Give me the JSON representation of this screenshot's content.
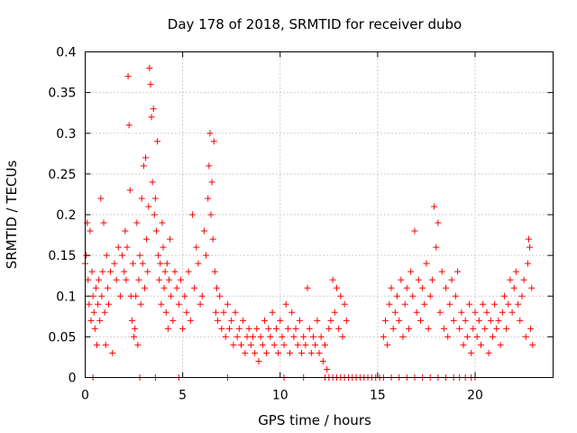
{
  "chart_data": {
    "type": "scatter",
    "title": "Day 178 of 2018, SRMTID for receiver dubo",
    "xlabel": "GPS time / hours",
    "ylabel": "SRMTID / TECUs",
    "xlim": [
      0,
      24
    ],
    "ylim": [
      0,
      0.4
    ],
    "xticks": [
      0,
      5,
      10,
      15,
      20
    ],
    "yticks": [
      0,
      0.05,
      0.1,
      0.15,
      0.2,
      0.25,
      0.3,
      0.35,
      0.4
    ],
    "grid": true,
    "marker": "+",
    "color": "#ff0000",
    "series": [
      {
        "name": "SRMTID",
        "points": [
          [
            0.0,
            0.14
          ],
          [
            0.05,
            0.15
          ],
          [
            0.1,
            0.19
          ],
          [
            0.15,
            0.12
          ],
          [
            0.2,
            0.09
          ],
          [
            0.25,
            0.18
          ],
          [
            0.3,
            0.07
          ],
          [
            0.35,
            0.13
          ],
          [
            0.4,
            0.1
          ],
          [
            0.45,
            0.08
          ],
          [
            0.5,
            0.06
          ],
          [
            0.55,
            0.11
          ],
          [
            0.6,
            0.04
          ],
          [
            0.65,
            0.09
          ],
          [
            0.7,
            0.12
          ],
          [
            0.75,
            0.07
          ],
          [
            0.8,
            0.22
          ],
          [
            0.85,
            0.1
          ],
          [
            0.9,
            0.13
          ],
          [
            0.95,
            0.19
          ],
          [
            1.0,
            0.08
          ],
          [
            1.05,
            0.04
          ],
          [
            1.1,
            0.15
          ],
          [
            1.15,
            0.11
          ],
          [
            1.2,
            0.09
          ],
          [
            1.3,
            0.13
          ],
          [
            1.4,
            0.03
          ],
          [
            1.5,
            0.14
          ],
          [
            1.6,
            0.12
          ],
          [
            1.7,
            0.16
          ],
          [
            1.8,
            0.1
          ],
          [
            1.9,
            0.15
          ],
          [
            2.0,
            0.13
          ],
          [
            2.05,
            0.18
          ],
          [
            2.1,
            0.12
          ],
          [
            2.15,
            0.16
          ],
          [
            2.2,
            0.37
          ],
          [
            2.25,
            0.31
          ],
          [
            2.3,
            0.23
          ],
          [
            2.35,
            0.1
          ],
          [
            2.4,
            0.07
          ],
          [
            2.45,
            0.14
          ],
          [
            2.5,
            0.05
          ],
          [
            2.55,
            0.06
          ],
          [
            2.6,
            0.1
          ],
          [
            2.65,
            0.19
          ],
          [
            2.7,
            0.04
          ],
          [
            2.75,
            0.12
          ],
          [
            2.8,
            0.15
          ],
          [
            2.85,
            0.09
          ],
          [
            2.9,
            0.22
          ],
          [
            2.95,
            0.14
          ],
          [
            3.0,
            0.26
          ],
          [
            3.05,
            0.11
          ],
          [
            3.1,
            0.27
          ],
          [
            3.15,
            0.17
          ],
          [
            3.2,
            0.13
          ],
          [
            3.25,
            0.21
          ],
          [
            3.3,
            0.38
          ],
          [
            3.35,
            0.36
          ],
          [
            3.4,
            0.32
          ],
          [
            3.45,
            0.24
          ],
          [
            3.5,
            0.33
          ],
          [
            3.55,
            0.2
          ],
          [
            3.6,
            0.22
          ],
          [
            3.65,
            0.18
          ],
          [
            3.7,
            0.29
          ],
          [
            3.75,
            0.15
          ],
          [
            3.8,
            0.12
          ],
          [
            3.85,
            0.14
          ],
          [
            3.9,
            0.09
          ],
          [
            3.95,
            0.19
          ],
          [
            4.0,
            0.16
          ],
          [
            4.05,
            0.11
          ],
          [
            4.1,
            0.13
          ],
          [
            4.15,
            0.08
          ],
          [
            4.2,
            0.14
          ],
          [
            4.25,
            0.06
          ],
          [
            4.3,
            0.12
          ],
          [
            4.35,
            0.17
          ],
          [
            4.4,
            0.1
          ],
          [
            4.5,
            0.07
          ],
          [
            4.6,
            0.13
          ],
          [
            4.7,
            0.11
          ],
          [
            4.8,
            0.09
          ],
          [
            4.9,
            0.12
          ],
          [
            5.0,
            0.06
          ],
          [
            5.1,
            0.1
          ],
          [
            5.2,
            0.08
          ],
          [
            5.3,
            0.13
          ],
          [
            5.4,
            0.07
          ],
          [
            5.5,
            0.2
          ],
          [
            5.6,
            0.11
          ],
          [
            5.7,
            0.16
          ],
          [
            5.8,
            0.14
          ],
          [
            5.9,
            0.09
          ],
          [
            6.0,
            0.1
          ],
          [
            6.1,
            0.18
          ],
          [
            6.2,
            0.15
          ],
          [
            6.3,
            0.22
          ],
          [
            6.35,
            0.26
          ],
          [
            6.4,
            0.3
          ],
          [
            6.45,
            0.2
          ],
          [
            6.5,
            0.24
          ],
          [
            6.55,
            0.17
          ],
          [
            6.6,
            0.29
          ],
          [
            6.65,
            0.13
          ],
          [
            6.7,
            0.08
          ],
          [
            6.75,
            0.11
          ],
          [
            6.8,
            0.07
          ],
          [
            6.9,
            0.1
          ],
          [
            7.0,
            0.06
          ],
          [
            7.1,
            0.08
          ],
          [
            7.2,
            0.05
          ],
          [
            7.3,
            0.09
          ],
          [
            7.4,
            0.06
          ],
          [
            7.5,
            0.07
          ],
          [
            7.6,
            0.04
          ],
          [
            7.7,
            0.08
          ],
          [
            7.8,
            0.05
          ],
          [
            7.9,
            0.06
          ],
          [
            8.0,
            0.04
          ],
          [
            8.1,
            0.07
          ],
          [
            8.2,
            0.03
          ],
          [
            8.3,
            0.05
          ],
          [
            8.4,
            0.06
          ],
          [
            8.5,
            0.04
          ],
          [
            8.6,
            0.05
          ],
          [
            8.7,
            0.03
          ],
          [
            8.8,
            0.06
          ],
          [
            8.9,
            0.02
          ],
          [
            9.0,
            0.05
          ],
          [
            9.1,
            0.04
          ],
          [
            9.2,
            0.07
          ],
          [
            9.3,
            0.03
          ],
          [
            9.4,
            0.06
          ],
          [
            9.5,
            0.05
          ],
          [
            9.6,
            0.08
          ],
          [
            9.7,
            0.04
          ],
          [
            9.8,
            0.06
          ],
          [
            9.9,
            0.03
          ],
          [
            10.0,
            0.07
          ],
          [
            10.1,
            0.05
          ],
          [
            10.2,
            0.04
          ],
          [
            10.3,
            0.09
          ],
          [
            10.4,
            0.06
          ],
          [
            10.5,
            0.03
          ],
          [
            10.6,
            0.08
          ],
          [
            10.7,
            0.05
          ],
          [
            10.8,
            0.06
          ],
          [
            10.9,
            0.04
          ],
          [
            11.0,
            0.07
          ],
          [
            11.1,
            0.03
          ],
          [
            11.2,
            0.05
          ],
          [
            11.3,
            0.04
          ],
          [
            11.4,
            0.11
          ],
          [
            11.5,
            0.06
          ],
          [
            11.6,
            0.03
          ],
          [
            11.7,
            0.05
          ],
          [
            11.8,
            0.04
          ],
          [
            11.9,
            0.07
          ],
          [
            12.0,
            0.03
          ],
          [
            12.1,
            0.05
          ],
          [
            12.2,
            0.02
          ],
          [
            12.3,
            0.04
          ],
          [
            12.4,
            0.01
          ],
          [
            12.5,
            0.06
          ],
          [
            12.6,
            0.07
          ],
          [
            12.7,
            0.12
          ],
          [
            12.8,
            0.08
          ],
          [
            12.9,
            0.11
          ],
          [
            13.0,
            0.06
          ],
          [
            13.1,
            0.1
          ],
          [
            13.2,
            0.05
          ],
          [
            13.3,
            0.09
          ],
          [
            13.4,
            0.07
          ],
          [
            15.3,
            0.05
          ],
          [
            15.4,
            0.07
          ],
          [
            15.5,
            0.04
          ],
          [
            15.6,
            0.09
          ],
          [
            15.7,
            0.11
          ],
          [
            15.8,
            0.06
          ],
          [
            15.9,
            0.08
          ],
          [
            16.0,
            0.1
          ],
          [
            16.1,
            0.07
          ],
          [
            16.2,
            0.12
          ],
          [
            16.3,
            0.05
          ],
          [
            16.4,
            0.09
          ],
          [
            16.5,
            0.11
          ],
          [
            16.6,
            0.06
          ],
          [
            16.7,
            0.13
          ],
          [
            16.8,
            0.1
          ],
          [
            16.9,
            0.18
          ],
          [
            17.0,
            0.08
          ],
          [
            17.1,
            0.12
          ],
          [
            17.2,
            0.07
          ],
          [
            17.3,
            0.11
          ],
          [
            17.4,
            0.09
          ],
          [
            17.5,
            0.14
          ],
          [
            17.6,
            0.06
          ],
          [
            17.7,
            0.1
          ],
          [
            17.8,
            0.12
          ],
          [
            17.9,
            0.21
          ],
          [
            18.0,
            0.16
          ],
          [
            18.1,
            0.19
          ],
          [
            18.2,
            0.08
          ],
          [
            18.3,
            0.13
          ],
          [
            18.4,
            0.06
          ],
          [
            18.5,
            0.11
          ],
          [
            18.6,
            0.05
          ],
          [
            18.7,
            0.09
          ],
          [
            18.8,
            0.12
          ],
          [
            18.9,
            0.07
          ],
          [
            19.0,
            0.1
          ],
          [
            19.1,
            0.13
          ],
          [
            19.2,
            0.06
          ],
          [
            19.3,
            0.08
          ],
          [
            19.4,
            0.04
          ],
          [
            19.5,
            0.07
          ],
          [
            19.6,
            0.05
          ],
          [
            19.7,
            0.09
          ],
          [
            19.8,
            0.03
          ],
          [
            19.9,
            0.06
          ],
          [
            20.0,
            0.08
          ],
          [
            20.1,
            0.05
          ],
          [
            20.2,
            0.07
          ],
          [
            20.3,
            0.04
          ],
          [
            20.4,
            0.09
          ],
          [
            20.5,
            0.06
          ],
          [
            20.6,
            0.08
          ],
          [
            20.7,
            0.03
          ],
          [
            20.8,
            0.07
          ],
          [
            20.9,
            0.05
          ],
          [
            21.0,
            0.09
          ],
          [
            21.1,
            0.06
          ],
          [
            21.2,
            0.07
          ],
          [
            21.3,
            0.04
          ],
          [
            21.4,
            0.08
          ],
          [
            21.5,
            0.1
          ],
          [
            21.6,
            0.06
          ],
          [
            21.7,
            0.09
          ],
          [
            21.8,
            0.12
          ],
          [
            21.9,
            0.08
          ],
          [
            22.0,
            0.11
          ],
          [
            22.1,
            0.13
          ],
          [
            22.2,
            0.09
          ],
          [
            22.3,
            0.07
          ],
          [
            22.4,
            0.1
          ],
          [
            22.5,
            0.12
          ],
          [
            22.6,
            0.05
          ],
          [
            22.7,
            0.14
          ],
          [
            22.75,
            0.17
          ],
          [
            22.8,
            0.16
          ],
          [
            22.85,
            0.06
          ],
          [
            22.9,
            0.11
          ],
          [
            22.95,
            0.04
          ],
          [
            0.4,
            0.0
          ],
          [
            2.8,
            0.0
          ],
          [
            3.6,
            0.0
          ],
          [
            4.8,
            0.0
          ],
          [
            7.3,
            0.0
          ],
          [
            10.2,
            0.0
          ],
          [
            11.2,
            0.0
          ],
          [
            12.3,
            0.0
          ],
          [
            12.5,
            0.0
          ],
          [
            12.7,
            0.0
          ],
          [
            12.9,
            0.0
          ],
          [
            13.1,
            0.0
          ],
          [
            13.3,
            0.0
          ],
          [
            13.5,
            0.0
          ],
          [
            13.7,
            0.0
          ],
          [
            13.9,
            0.0
          ],
          [
            14.1,
            0.0
          ],
          [
            14.3,
            0.0
          ],
          [
            14.5,
            0.0
          ],
          [
            14.7,
            0.0
          ],
          [
            14.9,
            0.0
          ],
          [
            15.1,
            0.0
          ],
          [
            15.3,
            0.0
          ],
          [
            15.7,
            0.0
          ],
          [
            16.1,
            0.0
          ],
          [
            16.5,
            0.0
          ],
          [
            16.9,
            0.0
          ],
          [
            17.3,
            0.0
          ],
          [
            17.7,
            0.0
          ],
          [
            18.1,
            0.0
          ],
          [
            18.5,
            0.0
          ],
          [
            18.9,
            0.0
          ],
          [
            19.2,
            0.0
          ],
          [
            19.5,
            0.0
          ],
          [
            19.8,
            0.0
          ],
          [
            20.0,
            0.0
          ]
        ]
      }
    ]
  }
}
